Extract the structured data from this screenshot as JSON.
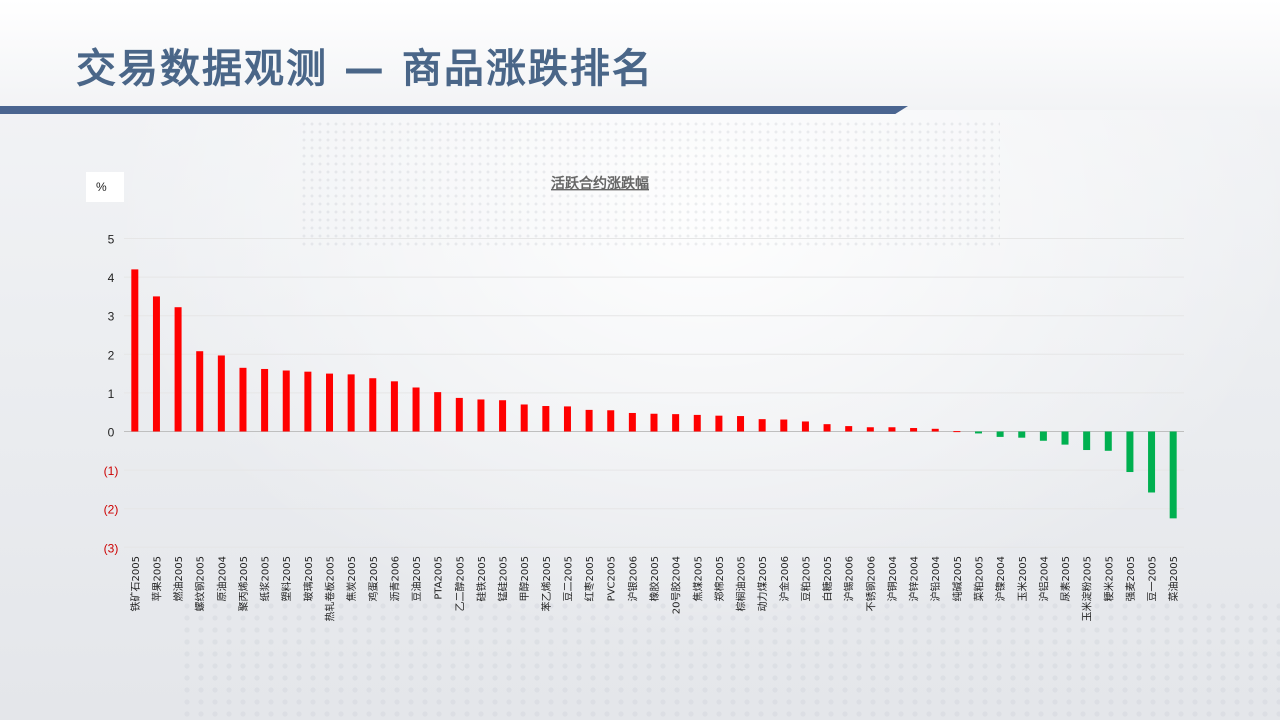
{
  "page": {
    "title": "交易数据观测 — 商品涨跌排名"
  },
  "chart_data": {
    "type": "bar",
    "title": "活跃合约涨跌幅",
    "ylabel": "%",
    "ylim": [
      -3,
      5
    ],
    "yticks": [
      5,
      4,
      3,
      2,
      1,
      0,
      -1,
      -2,
      -3
    ],
    "ytick_labels": [
      "5",
      "4",
      "3",
      "2",
      "1",
      "0",
      "(1)",
      "(2)",
      "(3)"
    ],
    "colors": {
      "up": "#ff0000",
      "down": "#00b050",
      "negative_tick": "#cc0000",
      "axis_text": "#222222",
      "title": "#666666"
    },
    "categories": [
      "铁矿石2005",
      "苹果2005",
      "燃油2005",
      "螺纹钢2005",
      "原油2004",
      "聚丙烯2005",
      "纸浆2005",
      "塑料2005",
      "玻璃2005",
      "热轧卷板2005",
      "焦炭2005",
      "鸡蛋2005",
      "沥青2006",
      "豆油2005",
      "PTA2005",
      "乙二醇2005",
      "硅铁2005",
      "锰硅2005",
      "甲醇2005",
      "苯乙烯2005",
      "豆二2005",
      "红枣2005",
      "PVC2005",
      "沪银2006",
      "橡胶2005",
      "20号胶2004",
      "焦煤2005",
      "郑棉2005",
      "棕榈油2005",
      "动力煤2005",
      "沪金2006",
      "豆粕2005",
      "白糖2005",
      "沪锡2006",
      "不锈钢2006",
      "沪铜2004",
      "沪锌2004",
      "沪铅2004",
      "纯碱2005",
      "菜粕2005",
      "沪镍2004",
      "玉米2005",
      "沪铝2004",
      "尿素2005",
      "玉米淀粉2005",
      "粳米2005",
      "强麦2005",
      "豆一2005",
      "菜油2005"
    ],
    "values": [
      4.2,
      3.5,
      3.22,
      2.08,
      1.97,
      1.65,
      1.62,
      1.58,
      1.55,
      1.5,
      1.48,
      1.38,
      1.3,
      1.14,
      1.02,
      0.87,
      0.83,
      0.81,
      0.7,
      0.66,
      0.65,
      0.56,
      0.55,
      0.48,
      0.46,
      0.45,
      0.43,
      0.41,
      0.4,
      0.32,
      0.31,
      0.26,
      0.19,
      0.14,
      0.11,
      0.11,
      0.09,
      0.07,
      0.01,
      -0.05,
      -0.14,
      -0.16,
      -0.24,
      -0.34,
      -0.48,
      -0.5,
      -1.05,
      -1.58,
      -2.25
    ]
  }
}
